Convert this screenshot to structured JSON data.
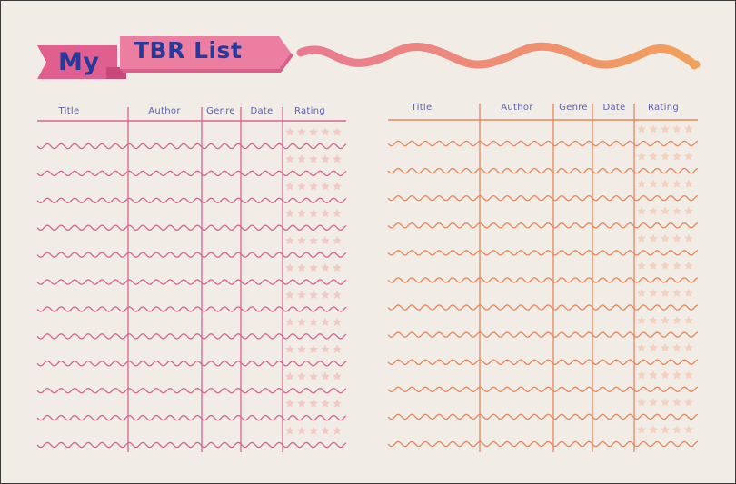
{
  "header": {
    "title_first": "My",
    "title_second": "TBR List",
    "title_color": "#263a9c"
  },
  "tables": [
    {
      "side": "left",
      "columns": [
        "Title",
        "Author",
        "Genre",
        "Date",
        "Rating"
      ],
      "row_count": 12,
      "stars_per_row": 5,
      "line_color": "#d3668f",
      "star_color": "#f2c9c4"
    },
    {
      "side": "right",
      "columns": [
        "Title",
        "Author",
        "Genre",
        "Date",
        "Rating"
      ],
      "row_count": 12,
      "stars_per_row": 5,
      "line_color": "#e8865b",
      "star_color": "#f4d0bf"
    }
  ],
  "colors": {
    "background": "#f1ece6",
    "banner_pink": "#e8709a",
    "banner_ribbon": "#e05f8e",
    "wave_start": "#ea7a92",
    "wave_end": "#f2a05a",
    "header_text": "#5c5fb0"
  }
}
